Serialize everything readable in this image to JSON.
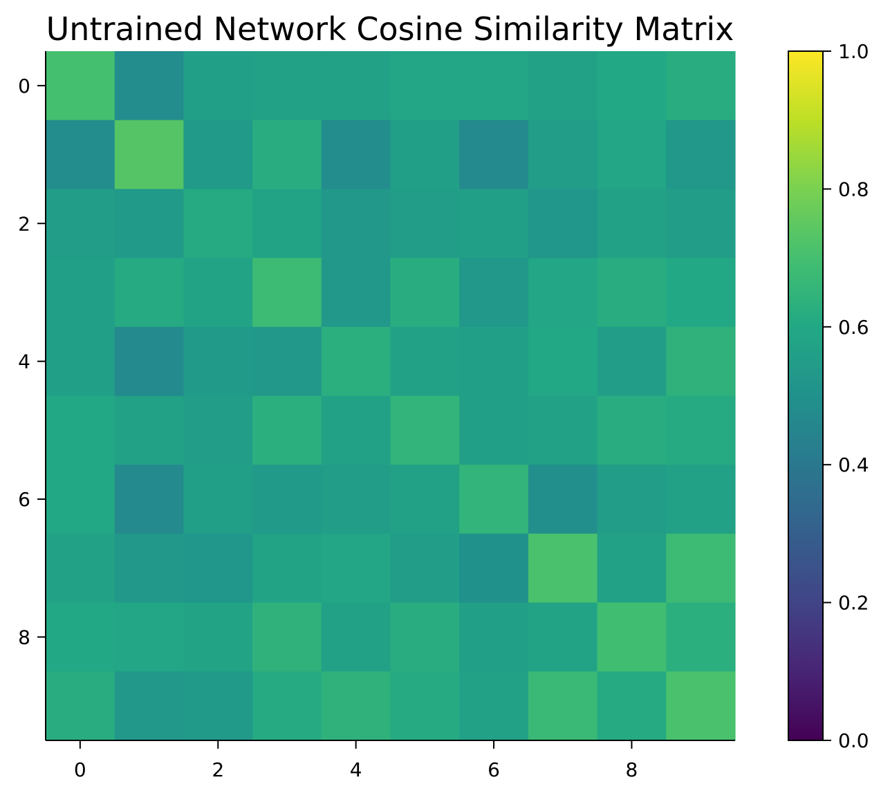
{
  "chart_data": {
    "type": "heatmap",
    "title": "Untrained Network Cosine Similarity Matrix",
    "xlabel": "",
    "ylabel": "",
    "x_ticks": [
      "0",
      "2",
      "4",
      "6",
      "8"
    ],
    "y_ticks": [
      "0",
      "2",
      "4",
      "6",
      "8"
    ],
    "x_tick_values": [
      0,
      2,
      4,
      6,
      8
    ],
    "y_tick_values": [
      0,
      2,
      4,
      6,
      8
    ],
    "colormap": "viridis",
    "vmin": 0.0,
    "vmax": 1.0,
    "colorbar_ticks": [
      "0.0",
      "0.2",
      "0.4",
      "0.6",
      "0.8",
      "1.0"
    ],
    "colorbar_tick_values": [
      0.0,
      0.2,
      0.4,
      0.6,
      0.8,
      1.0
    ],
    "grid": false,
    "matrix": [
      [
        0.7,
        0.48,
        0.56,
        0.57,
        0.57,
        0.59,
        0.59,
        0.57,
        0.6,
        0.62
      ],
      [
        0.48,
        0.73,
        0.54,
        0.62,
        0.48,
        0.56,
        0.47,
        0.55,
        0.59,
        0.53
      ],
      [
        0.55,
        0.54,
        0.61,
        0.58,
        0.53,
        0.55,
        0.56,
        0.52,
        0.57,
        0.55
      ],
      [
        0.56,
        0.61,
        0.58,
        0.68,
        0.53,
        0.62,
        0.53,
        0.59,
        0.62,
        0.6
      ],
      [
        0.56,
        0.47,
        0.54,
        0.53,
        0.63,
        0.57,
        0.56,
        0.6,
        0.55,
        0.64
      ],
      [
        0.6,
        0.57,
        0.55,
        0.63,
        0.57,
        0.65,
        0.56,
        0.57,
        0.62,
        0.61
      ],
      [
        0.6,
        0.47,
        0.56,
        0.54,
        0.55,
        0.57,
        0.65,
        0.49,
        0.55,
        0.57
      ],
      [
        0.57,
        0.53,
        0.52,
        0.58,
        0.59,
        0.55,
        0.5,
        0.71,
        0.57,
        0.68
      ],
      [
        0.6,
        0.59,
        0.58,
        0.64,
        0.57,
        0.62,
        0.56,
        0.58,
        0.69,
        0.63
      ],
      [
        0.62,
        0.53,
        0.54,
        0.61,
        0.64,
        0.61,
        0.57,
        0.67,
        0.61,
        0.71
      ]
    ]
  }
}
